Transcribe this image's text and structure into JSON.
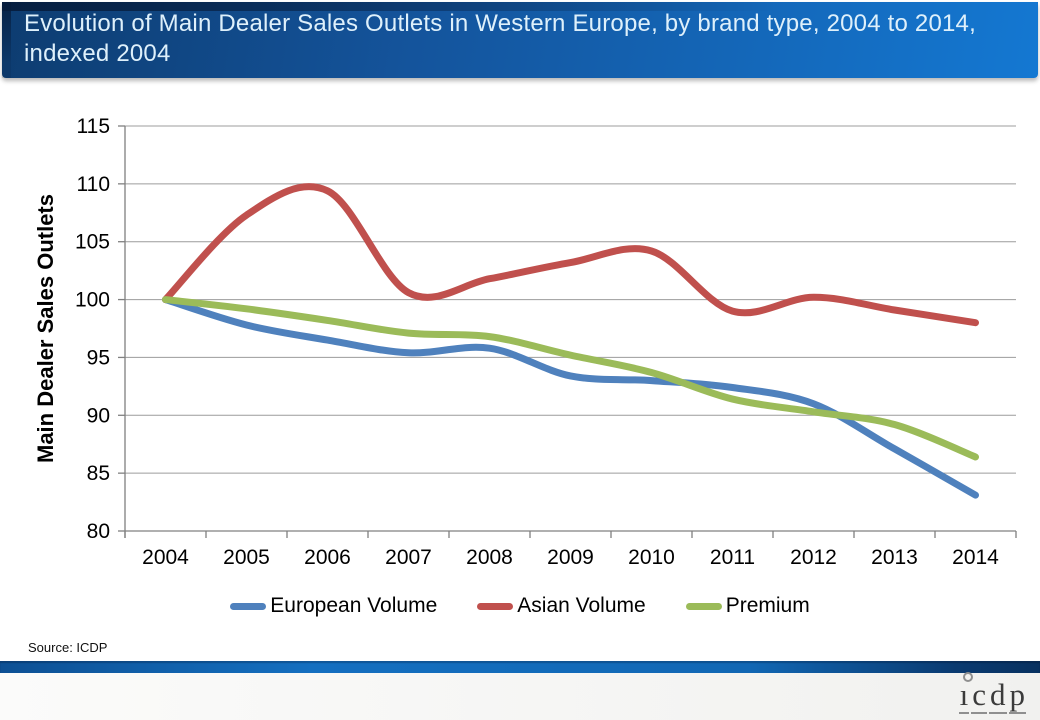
{
  "header": {
    "title": "Evolution of Main Dealer Sales Outlets in Western Europe, by brand type, 2004 to 2014, indexed 2004"
  },
  "chart_data": {
    "type": "line",
    "smoothed": true,
    "ylabel": "Main Dealer Sales Outlets",
    "xlabel": "",
    "categories": [
      "2004",
      "2005",
      "2006",
      "2007",
      "2008",
      "2009",
      "2010",
      "2011",
      "2012",
      "2013",
      "2014"
    ],
    "series": [
      {
        "name": "European Volume",
        "color": "#4F81BD",
        "values": [
          100,
          97.8,
          96.5,
          95.4,
          95.8,
          93.4,
          93.0,
          92.4,
          91.0,
          87.1,
          83.1
        ]
      },
      {
        "name": "Asian Volume",
        "color": "#C0504D",
        "values": [
          100,
          107.3,
          109.4,
          100.6,
          101.8,
          103.2,
          104.2,
          99.0,
          100.2,
          99.1,
          98.0
        ]
      },
      {
        "name": "Premium",
        "color": "#9BBB59",
        "values": [
          100,
          99.2,
          98.2,
          97.1,
          96.8,
          95.2,
          93.7,
          91.4,
          90.3,
          89.2,
          86.4
        ]
      }
    ],
    "ylim": [
      80,
      115
    ],
    "ytick_step": 5,
    "grid": true,
    "legend_position": "bottom",
    "axis_color": "#808080",
    "grid_color": "#9c9c9c",
    "tick_label_color": "#000000"
  },
  "source": {
    "label": "Source: ICDP"
  },
  "footer": {
    "logo_letters": [
      "i",
      "c",
      "d",
      "p"
    ]
  }
}
